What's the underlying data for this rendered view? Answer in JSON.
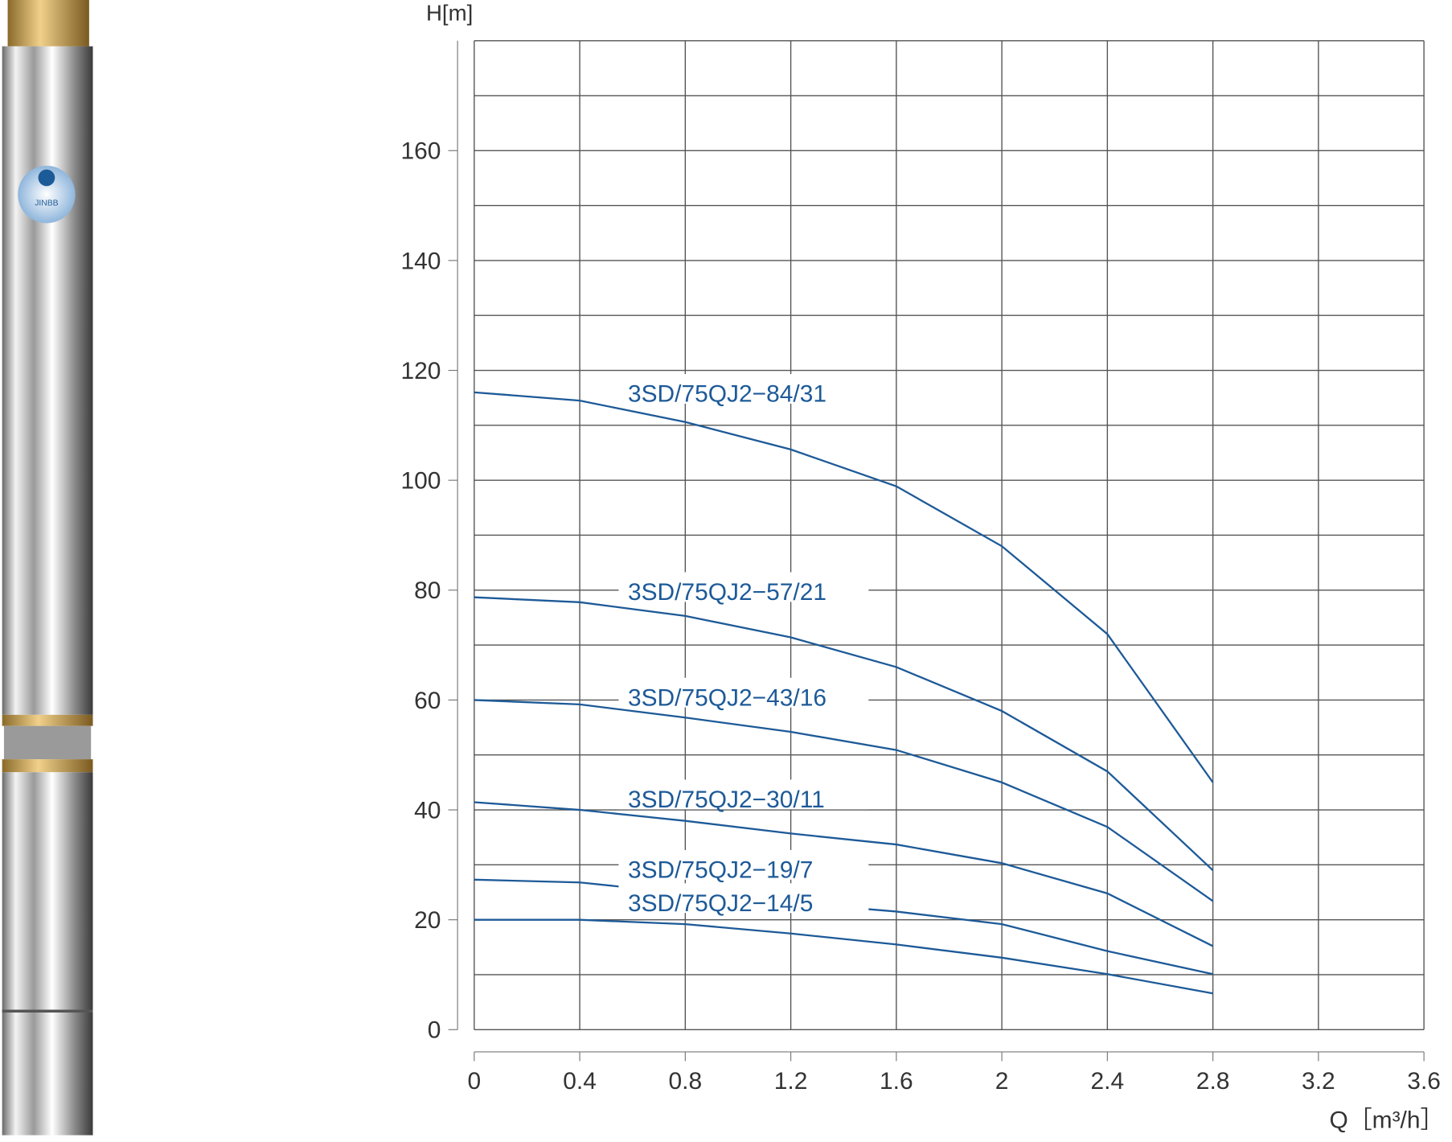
{
  "brand": "JINBB",
  "chart_data": {
    "type": "line",
    "ylabel": "H[m]",
    "xlabel": "Q［m³/h］",
    "x": [
      0,
      0.4,
      0.8,
      1.2,
      1.6,
      2.0,
      2.4,
      2.8
    ],
    "series": [
      {
        "name": "3SD/75QJ2−84/31",
        "color": "#1d5a98",
        "values": [
          116,
          114.5,
          110.6,
          105.6,
          98.9,
          88,
          72,
          45
        ]
      },
      {
        "name": "3SD/75QJ2−57/21",
        "color": "#1d5a98",
        "values": [
          78.7,
          77.8,
          75.3,
          71.4,
          66,
          58,
          47,
          29
        ]
      },
      {
        "name": "3SD/75QJ2−43/16",
        "color": "#1d5a98",
        "values": [
          60,
          59.2,
          56.8,
          54.2,
          50.9,
          45,
          36.9,
          23.4
        ]
      },
      {
        "name": "3SD/75QJ2−30/11",
        "color": "#1d5a98",
        "values": [
          41.4,
          40,
          38,
          35.7,
          33.7,
          30.3,
          24.8,
          15.2
        ]
      },
      {
        "name": "3SD/75QJ2−19/7",
        "color": "#1d5a98",
        "values": [
          27.3,
          26.8,
          24.8,
          23.1,
          21.5,
          19.2,
          14.3,
          10.1
        ]
      },
      {
        "name": "3SD/75QJ2−14/5",
        "color": "#1d5a98",
        "values": [
          20,
          20,
          19.2,
          17.5,
          15.5,
          13.1,
          10.1,
          6.6
        ]
      }
    ],
    "xlim": [
      0,
      3.6
    ],
    "ylim": [
      0,
      180
    ],
    "xticks": [
      0,
      0.4,
      0.8,
      1.2,
      1.6,
      2,
      2.4,
      2.8,
      3.2,
      3.6
    ],
    "yticks": [
      0,
      20,
      40,
      60,
      80,
      100,
      120,
      140,
      160
    ],
    "ygrid": [
      0,
      10,
      20,
      30,
      40,
      50,
      60,
      70,
      80,
      90,
      100,
      110,
      120,
      130,
      140,
      150,
      160,
      170,
      180
    ],
    "grid": true
  }
}
